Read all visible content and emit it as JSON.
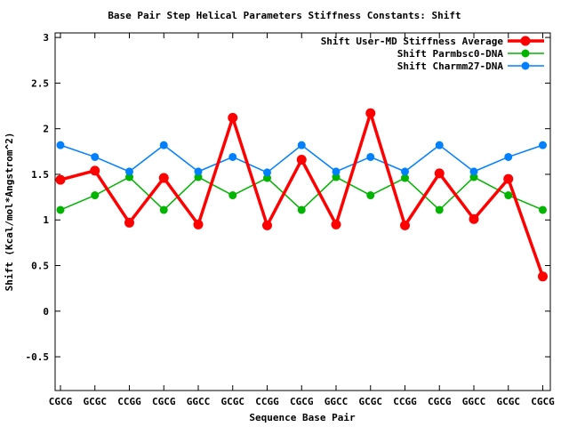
{
  "window": {
    "background": "#ffffff",
    "frame_color": "#000000"
  },
  "chart_data": {
    "type": "line",
    "title": "Base Pair Step Helical Parameters Stiffness Constants: Shift",
    "xlabel": "Sequence Base Pair",
    "ylabel": "Shift (Kcal/mol*Angstrom^2)",
    "categories": [
      "CGCG",
      "GCGC",
      "CCGG",
      "CGCG",
      "GGCC",
      "GCGC",
      "CCGG",
      "CGCG",
      "GGCC",
      "GCGC",
      "CCGG",
      "CGCG",
      "GGCC",
      "GCGC",
      "CGCG"
    ],
    "series": [
      {
        "name": "Shift User-MD Stiffness Average",
        "color": "#ff0000",
        "values": [
          1.44,
          1.54,
          0.97,
          1.46,
          0.95,
          2.12,
          0.94,
          1.66,
          0.95,
          2.17,
          0.94,
          1.51,
          1.01,
          1.45,
          0.38
        ]
      },
      {
        "name": "Shift Parmbsc0-DNA",
        "color": "#00b400",
        "values": [
          1.11,
          1.27,
          1.47,
          1.11,
          1.47,
          1.27,
          1.46,
          1.11,
          1.47,
          1.27,
          1.46,
          1.11,
          1.47,
          1.27,
          1.11
        ]
      },
      {
        "name": "Shift Charmm27-DNA",
        "color": "#0080ff",
        "values": [
          1.82,
          1.69,
          1.53,
          1.82,
          1.53,
          1.69,
          1.52,
          1.82,
          1.53,
          1.69,
          1.53,
          1.82,
          1.53,
          1.69,
          1.82
        ]
      }
    ],
    "y_ticks": [
      -0.5,
      0,
      0.5,
      1,
      1.5,
      2,
      2.5,
      3
    ],
    "y_tick_labels": [
      "-0.5",
      "0",
      "0.5",
      "1",
      "1.5",
      "2",
      "2.5",
      "3"
    ],
    "ylim": [
      -0.87,
      3.05
    ],
    "grid": false,
    "legend_position": "top-right"
  }
}
